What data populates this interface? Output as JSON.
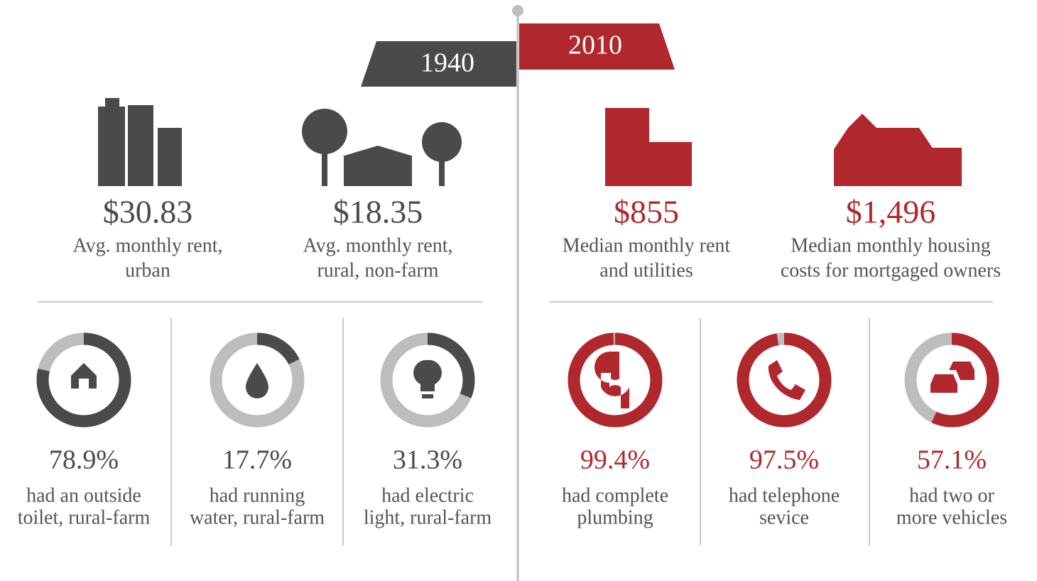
{
  "header": {
    "left_year": "1940",
    "right_year": "2010"
  },
  "left": {
    "costs": [
      {
        "amount": "$30.83",
        "description": [
          "Avg. monthly rent,",
          "urban"
        ]
      },
      {
        "amount": "$18.35",
        "description": [
          "Avg. monthly rent,",
          "rural, non-farm"
        ]
      }
    ],
    "stats": [
      {
        "value": 78.9,
        "label": "78.9%",
        "description": [
          "had an outside",
          "toilet, rural-farm"
        ]
      },
      {
        "value": 17.7,
        "label": "17.7%",
        "description": [
          "had running",
          "water, rural-farm"
        ]
      },
      {
        "value": 31.3,
        "label": "31.3%",
        "description": [
          "had electric",
          "light, rural-farm"
        ]
      }
    ]
  },
  "right": {
    "costs": [
      {
        "amount": "$855",
        "description": [
          "Median monthly rent",
          "and utilities"
        ]
      },
      {
        "amount": "$1,496",
        "description": [
          "Median monthly housing",
          "costs for mortgaged owners"
        ]
      }
    ],
    "stats": [
      {
        "value": 99.4,
        "label": "99.4%",
        "description": [
          "had complete",
          "plumbing"
        ]
      },
      {
        "value": 97.5,
        "label": "97.5%",
        "description": [
          "had telephone",
          "sevice"
        ]
      },
      {
        "value": 57.1,
        "label": "57.1%",
        "description": [
          "had two or",
          "more vehicles"
        ]
      }
    ]
  }
}
